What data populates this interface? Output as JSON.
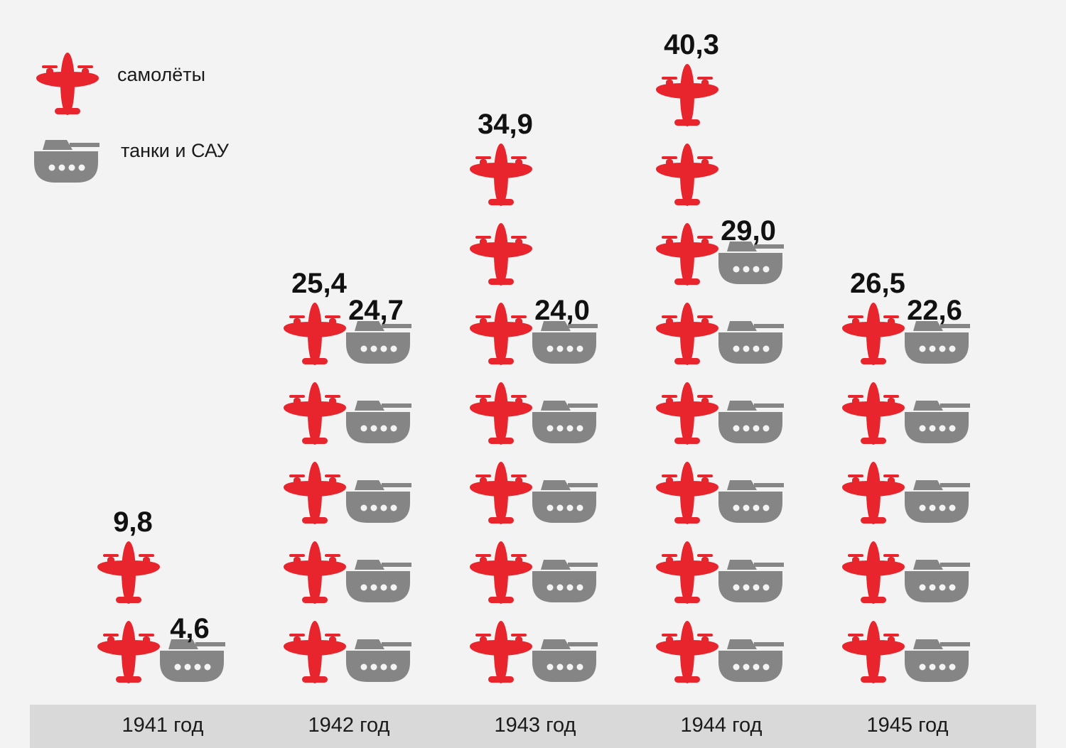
{
  "chart_data": {
    "type": "bar",
    "categories": [
      "1941 год",
      "1942 год",
      "1943 год",
      "1944 год",
      "1945 год"
    ],
    "series": [
      {
        "name": "самолёты",
        "values": [
          9.8,
          25.4,
          34.9,
          40.3,
          26.5
        ],
        "labels": [
          "9,8",
          "25,4",
          "34,9",
          "40,3",
          "26,5"
        ],
        "color": "#e8242c",
        "icon": "plane-icon"
      },
      {
        "name": "танки и САУ",
        "values": [
          4.6,
          24.7,
          24.0,
          29.0,
          22.6
        ],
        "labels": [
          "4,6",
          "24,7",
          "24,0",
          "29,0",
          "22,6"
        ],
        "color": "#858585",
        "icon": "tank-icon"
      }
    ],
    "plane_icon_counts": [
      2,
      5,
      7,
      8,
      5
    ],
    "tank_icon_counts": [
      1,
      5,
      5,
      6,
      5
    ]
  },
  "legend": {
    "planes": "самолёты",
    "tanks": "танки и САУ"
  },
  "colors": {
    "plane": "#e8242c",
    "tank": "#858585",
    "year_band": "#d9d9d9",
    "background": "#f3f3f3"
  }
}
